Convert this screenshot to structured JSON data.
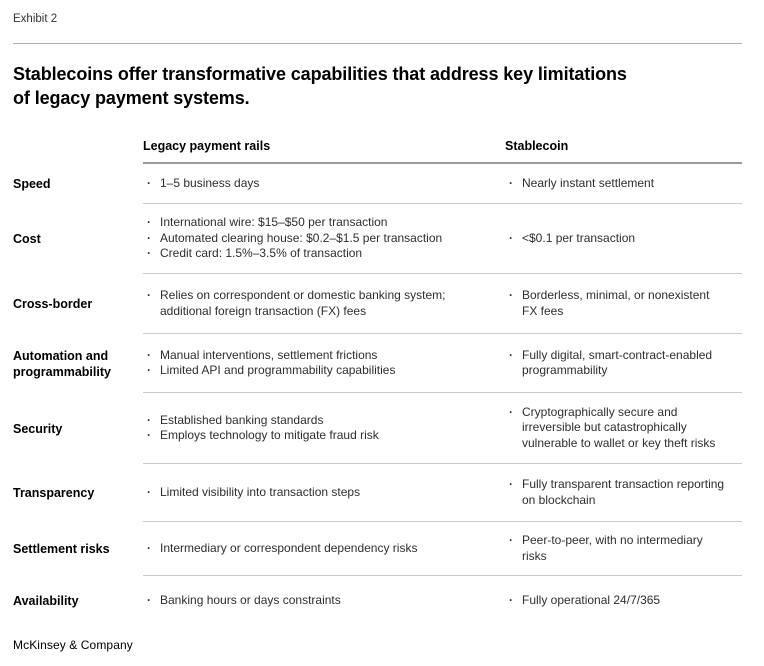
{
  "exhibit_label": "Exhibit 2",
  "title": {
    "line1": "Stablecoins offer transformative capabilities that address key limitations",
    "line2": "of legacy payment systems."
  },
  "table": {
    "columns": {
      "legacy": "Legacy payment rails",
      "stablecoin": "Stablecoin"
    },
    "rows": [
      {
        "label": "Speed",
        "legacy": [
          "1–5 business days"
        ],
        "stablecoin": [
          "Nearly instant settlement"
        ]
      },
      {
        "label": "Cost",
        "legacy": [
          "International wire: $15–$50 per transaction",
          "Automated clearing house: $0.2–$1.5 per transaction",
          "Credit card: 1.5%–3.5% of transaction"
        ],
        "stablecoin": [
          "<$0.1 per transaction"
        ]
      },
      {
        "label": "Cross-border",
        "legacy": [
          "Relies on correspondent or domestic banking system;\nadditional foreign transaction (FX) fees"
        ],
        "stablecoin": [
          "Borderless, minimal, or nonexistent\nFX fees"
        ]
      },
      {
        "label": "Automation and\nprogrammability",
        "legacy": [
          "Manual interventions, settlement frictions",
          "Limited API and programmability capabilities"
        ],
        "stablecoin": [
          "Fully digital, smart-contract-enabled\nprogrammability"
        ]
      },
      {
        "label": "Security",
        "legacy": [
          "Established banking standards",
          "Employs technology to mitigate fraud risk"
        ],
        "stablecoin": [
          "Cryptographically secure and\nirreversible but catastrophically\nvulnerable to wallet or key theft risks"
        ]
      },
      {
        "label": "Transparency",
        "legacy": [
          "Limited visibility into transaction steps"
        ],
        "stablecoin": [
          "Fully transparent transaction reporting\non blockchain"
        ]
      },
      {
        "label": "Settlement risks",
        "legacy": [
          "Intermediary or correspondent dependency risks"
        ],
        "stablecoin": [
          "Peer-to-peer, with no intermediary\nrisks"
        ]
      },
      {
        "label": "Availability",
        "legacy": [
          "Banking hours or days constraints"
        ],
        "stablecoin": [
          "Fully operational 24/7/365"
        ]
      }
    ]
  },
  "footer": {
    "brand": "McKinsey & Company"
  },
  "colors": {
    "rule_top": "#b0b0b0",
    "rule_header": "#9a9a9a",
    "rule_row": "#cbcbcb",
    "text_primary": "#000000",
    "text_body": "#2e2e2e"
  }
}
